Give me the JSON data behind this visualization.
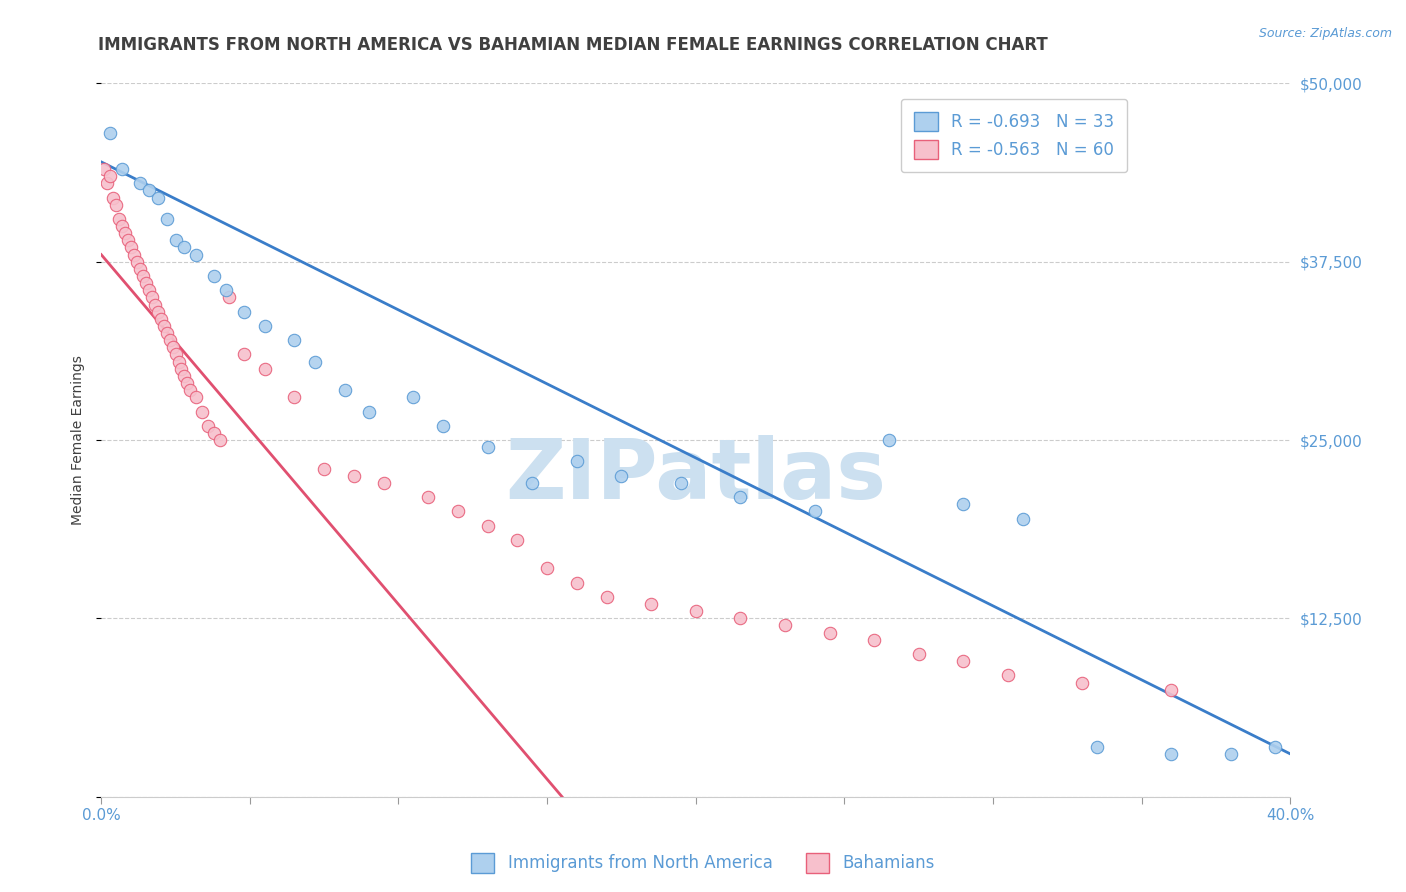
{
  "title": "IMMIGRANTS FROM NORTH AMERICA VS BAHAMIAN MEDIAN FEMALE EARNINGS CORRELATION CHART",
  "source": "Source: ZipAtlas.com",
  "ylabel": "Median Female Earnings",
  "xlim": [
    0.0,
    0.4
  ],
  "ylim": [
    0,
    50000
  ],
  "xticks": [
    0.0,
    0.05,
    0.1,
    0.15,
    0.2,
    0.25,
    0.3,
    0.35,
    0.4
  ],
  "xticklabels": [
    "0.0%",
    "",
    "",
    "",
    "",
    "",
    "",
    "",
    "40.0%"
  ],
  "yticks": [
    0,
    12500,
    25000,
    37500,
    50000
  ],
  "yticklabels_right": [
    "",
    "$12,500",
    "$25,000",
    "$37,500",
    "$50,000"
  ],
  "blue_fill": "#aed0ee",
  "pink_fill": "#f7c0cc",
  "blue_edge": "#5b9bd5",
  "pink_edge": "#e8607a",
  "blue_line": "#3a7dc9",
  "pink_line": "#e05070",
  "axis_color": "#5b9bd5",
  "grid_color": "#cccccc",
  "title_color": "#404040",
  "watermark_text": "ZIPatlas",
  "watermark_color": "#cce0f0",
  "legend_R1": "R = -0.693",
  "legend_N1": "N = 33",
  "legend_R2": "R = -0.563",
  "legend_N2": "N = 60",
  "legend_label1": "Immigrants from North America",
  "legend_label2": "Bahamians",
  "blue_scatter_x": [
    0.003,
    0.007,
    0.013,
    0.016,
    0.019,
    0.022,
    0.025,
    0.028,
    0.032,
    0.038,
    0.042,
    0.048,
    0.055,
    0.065,
    0.072,
    0.082,
    0.09,
    0.105,
    0.115,
    0.13,
    0.145,
    0.16,
    0.175,
    0.195,
    0.215,
    0.24,
    0.265,
    0.29,
    0.31,
    0.335,
    0.36,
    0.38,
    0.395
  ],
  "blue_scatter_y": [
    46500,
    44000,
    43000,
    42500,
    42000,
    40500,
    39000,
    38500,
    38000,
    36500,
    35500,
    34000,
    33000,
    32000,
    30500,
    28500,
    27000,
    28000,
    26000,
    24500,
    22000,
    23500,
    22500,
    22000,
    21000,
    20000,
    25000,
    20500,
    19500,
    3500,
    3000,
    3000,
    3500
  ],
  "pink_scatter_x": [
    0.001,
    0.002,
    0.003,
    0.004,
    0.005,
    0.006,
    0.007,
    0.008,
    0.009,
    0.01,
    0.011,
    0.012,
    0.013,
    0.014,
    0.015,
    0.016,
    0.017,
    0.018,
    0.019,
    0.02,
    0.021,
    0.022,
    0.023,
    0.024,
    0.025,
    0.026,
    0.027,
    0.028,
    0.029,
    0.03,
    0.032,
    0.034,
    0.036,
    0.038,
    0.04,
    0.043,
    0.048,
    0.055,
    0.065,
    0.075,
    0.085,
    0.095,
    0.11,
    0.12,
    0.13,
    0.14,
    0.15,
    0.16,
    0.17,
    0.185,
    0.2,
    0.215,
    0.23,
    0.245,
    0.26,
    0.275,
    0.29,
    0.305,
    0.33,
    0.36
  ],
  "pink_scatter_y": [
    44000,
    43000,
    43500,
    42000,
    41500,
    40500,
    40000,
    39500,
    39000,
    38500,
    38000,
    37500,
    37000,
    36500,
    36000,
    35500,
    35000,
    34500,
    34000,
    33500,
    33000,
    32500,
    32000,
    31500,
    31000,
    30500,
    30000,
    29500,
    29000,
    28500,
    28000,
    27000,
    26000,
    25500,
    25000,
    35000,
    31000,
    30000,
    28000,
    23000,
    22500,
    22000,
    21000,
    20000,
    19000,
    18000,
    16000,
    15000,
    14000,
    13500,
    13000,
    12500,
    12000,
    11500,
    11000,
    10000,
    9500,
    8500,
    8000,
    7500
  ],
  "blue_trend_x": [
    0.0,
    0.4
  ],
  "blue_trend_y": [
    44500,
    3000
  ],
  "pink_trend_x": [
    0.0,
    0.155
  ],
  "pink_trend_y": [
    38000,
    0
  ]
}
